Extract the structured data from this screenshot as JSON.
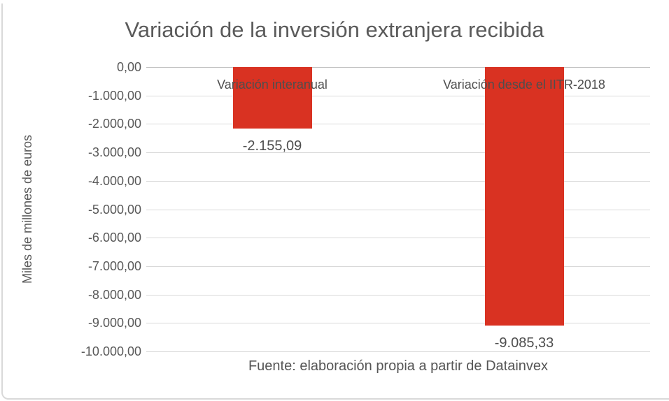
{
  "chart_data": {
    "type": "bar",
    "title": "Variación de la inversión extranjera recibida",
    "categories": [
      "Variación interanual",
      "Variación desde el IITR-2018"
    ],
    "values": [
      -2155.09,
      -9085.33
    ],
    "value_labels": [
      "-2.155,09",
      "-9.085,33"
    ],
    "xlabel": "",
    "ylabel": "Miles de millones de euros",
    "ylim": [
      -10000,
      0
    ],
    "ytick_step": 1000,
    "ytick_labels": [
      "0,00",
      "-1.000,00",
      "-2.000,00",
      "-3.000,00",
      "-4.000,00",
      "-5.000,00",
      "-6.000,00",
      "-7.000,00",
      "-8.000,00",
      "-9.000,00",
      "-10.000,00"
    ],
    "grid": true,
    "legend": "none",
    "bar_color": "#D93222",
    "gridline_color": "#D9D9D9",
    "axis_line_color": "#C2C2C2",
    "text_color": "#595959",
    "source_note": "Fuente: elaboración propia a partir de Datainvex"
  }
}
